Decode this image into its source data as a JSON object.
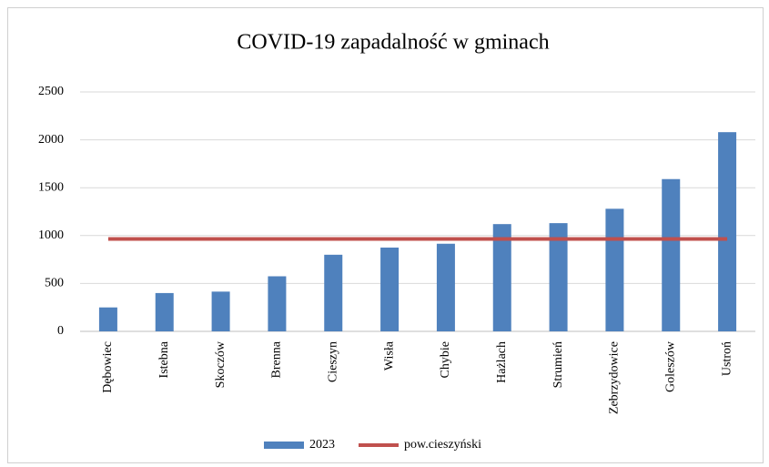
{
  "chart_data": {
    "type": "bar",
    "title": "COVID-19 zapadalność w gminach",
    "categories": [
      "Dębowiec",
      "Istebna",
      "Skoczów",
      "Brenna",
      "Cieszyn",
      "Wisła",
      "Chybie",
      "Hażlach",
      "Strumień",
      "Zebrzydowice",
      "Goleszów",
      "Ustroń"
    ],
    "series": [
      {
        "name": "2023",
        "type": "bar",
        "color": "#4f81bd",
        "values": [
          250,
          400,
          415,
          575,
          800,
          875,
          915,
          1120,
          1130,
          1280,
          1590,
          2080
        ]
      },
      {
        "name": "pow.cieszyński",
        "type": "line",
        "color": "#c0504d",
        "values": [
          965,
          965,
          965,
          965,
          965,
          965,
          965,
          965,
          965,
          965,
          965,
          965
        ]
      }
    ],
    "ylim": [
      0,
      2500
    ],
    "yticks": [
      0,
      500,
      1000,
      1500,
      2000,
      2500
    ],
    "grid": true,
    "legend": "bottom"
  }
}
